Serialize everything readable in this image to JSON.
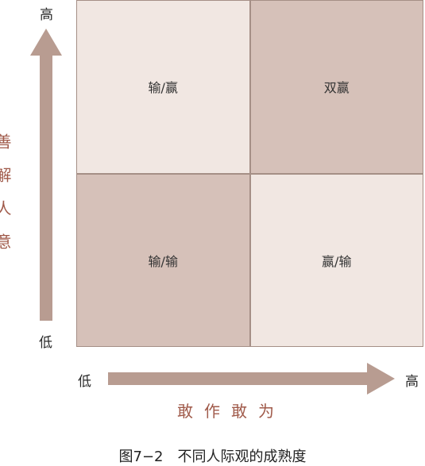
{
  "y_axis": {
    "high": "高",
    "low": "低",
    "label": "善解人意"
  },
  "x_axis": {
    "low": "低",
    "high": "高",
    "label": "敢作敢为"
  },
  "quadrants": {
    "top_left": "输/赢",
    "top_right": "双赢",
    "bottom_left": "输/输",
    "bottom_right": "赢/输"
  },
  "caption": "图7−2　不同人际观的成熟度",
  "colors": {
    "arrow": "#b89c91",
    "light_cell": "#f1e7e2",
    "dark_cell": "#d6c1b9",
    "axis_label": "#a05a4a"
  }
}
